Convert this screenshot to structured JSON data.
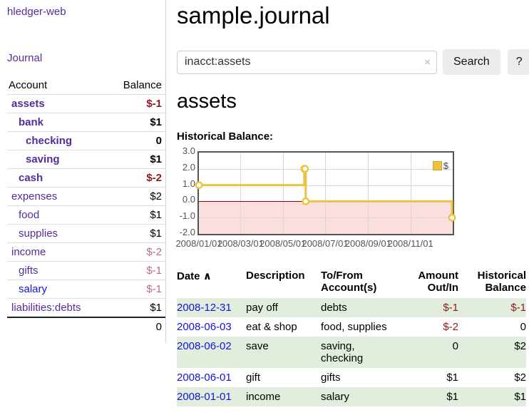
{
  "sidebar": {
    "app_title": "hledger-web",
    "journal_link": "Journal",
    "table": {
      "headers": {
        "account": "Account",
        "balance": "Balance"
      },
      "rows": [
        {
          "account": "assets",
          "depth": 1,
          "bold": true,
          "balance": "$-1",
          "balance_style": "neg"
        },
        {
          "account": "bank",
          "depth": 2,
          "bold": true,
          "balance": "$1",
          "balance_style": "pos"
        },
        {
          "account": "checking",
          "depth": 3,
          "bold": true,
          "balance": "0",
          "balance_style": "pos"
        },
        {
          "account": "saving",
          "depth": 3,
          "bold": true,
          "balance": "$1",
          "balance_style": "pos"
        },
        {
          "account": "cash",
          "depth": 2,
          "bold": true,
          "balance": "$-2",
          "balance_style": "neg"
        },
        {
          "account": "expenses",
          "depth": 1,
          "bold": false,
          "balance": "$2",
          "balance_style": "pos"
        },
        {
          "account": "food",
          "depth": 2,
          "bold": false,
          "balance": "$1",
          "balance_style": "pos"
        },
        {
          "account": "supplies",
          "depth": 2,
          "bold": false,
          "balance": "$1",
          "balance_style": "pos"
        },
        {
          "account": "income",
          "depth": 1,
          "bold": false,
          "balance": "$-2",
          "balance_style": "neg-light"
        },
        {
          "account": "gifts",
          "depth": 2,
          "bold": false,
          "balance": "$-1",
          "balance_style": "neg-light"
        },
        {
          "account": "salary",
          "depth": 2,
          "bold": false,
          "balance": "$-1",
          "balance_style": "neg-light",
          "link_style": "blue"
        },
        {
          "account": "liabilities:debts",
          "depth": 1,
          "bold": false,
          "balance": "$1",
          "balance_style": "pos"
        }
      ],
      "total": "0"
    }
  },
  "main": {
    "page_title": "sample.journal",
    "search": {
      "value": "inacct:assets",
      "clear_icon": "×",
      "button": "Search",
      "help_button": "?"
    },
    "account_heading": "assets",
    "chart_heading": "Historical Balance:"
  },
  "chart_data": {
    "type": "line",
    "mode": "step",
    "title": "Historical Balance",
    "series": [
      {
        "name": "$",
        "color": "#EDC240",
        "points": [
          [
            "2008-01-01",
            1
          ],
          [
            "2008-06-01",
            2
          ],
          [
            "2008-06-02",
            2
          ],
          [
            "2008-06-03",
            0
          ],
          [
            "2008-12-31",
            -1
          ]
        ]
      }
    ],
    "x_range": [
      "2008-01-01",
      "2009-01-01"
    ],
    "x_ticks": [
      "2008/01/01",
      "2008/03/01",
      "2008/05/01",
      "2008/07/01",
      "2008/09/01",
      "2008/11/01"
    ],
    "y_ticks": [
      3.0,
      2.0,
      1.0,
      0.0,
      -1.0,
      -2.0
    ],
    "ylim": [
      -2,
      3
    ],
    "grid": true,
    "legend_position": "top-right",
    "negative_region_color": "#fbdede",
    "zero_line_color": "#990000"
  },
  "register": {
    "headers": {
      "date": "Date",
      "sort_icon": "∧",
      "description": "Description",
      "accounts": "To/From\nAccount(s)",
      "amount": "Amount\nOut/In",
      "balance": "Historical\nBalance"
    },
    "rows": [
      {
        "date": "2008-12-31",
        "description": "pay off",
        "accounts": [
          "debts"
        ],
        "amount": "$-1",
        "amount_neg": true,
        "balance": "$-1",
        "balance_neg": true,
        "shaded": true
      },
      {
        "date": "2008-06-03",
        "description": "eat & shop",
        "accounts": [
          "food, supplies"
        ],
        "amount": "$-2",
        "amount_neg": true,
        "balance": "0",
        "balance_neg": false,
        "shaded": false
      },
      {
        "date": "2008-06-02",
        "description": "save",
        "accounts": [
          "saving,",
          "checking"
        ],
        "amount": "0",
        "amount_neg": false,
        "balance": "$2",
        "balance_neg": false,
        "shaded": true
      },
      {
        "date": "2008-06-01",
        "description": "gift",
        "accounts": [
          "gifts"
        ],
        "amount": "$1",
        "amount_neg": false,
        "balance": "$2",
        "balance_neg": false,
        "shaded": false
      },
      {
        "date": "2008-01-01",
        "description": "income",
        "accounts": [
          "salary"
        ],
        "amount": "$1",
        "amount_neg": false,
        "balance": "$1",
        "balance_neg": false,
        "shaded": true
      }
    ]
  },
  "colors": {
    "purple_link": "#552d9b",
    "blue_link": "#1414d6",
    "negative": "#8e1b1b",
    "negative_light": "#b5707d",
    "row_highlight": "#e2eedd",
    "chart_line": "#EDC240",
    "plot_border": "#545454"
  }
}
